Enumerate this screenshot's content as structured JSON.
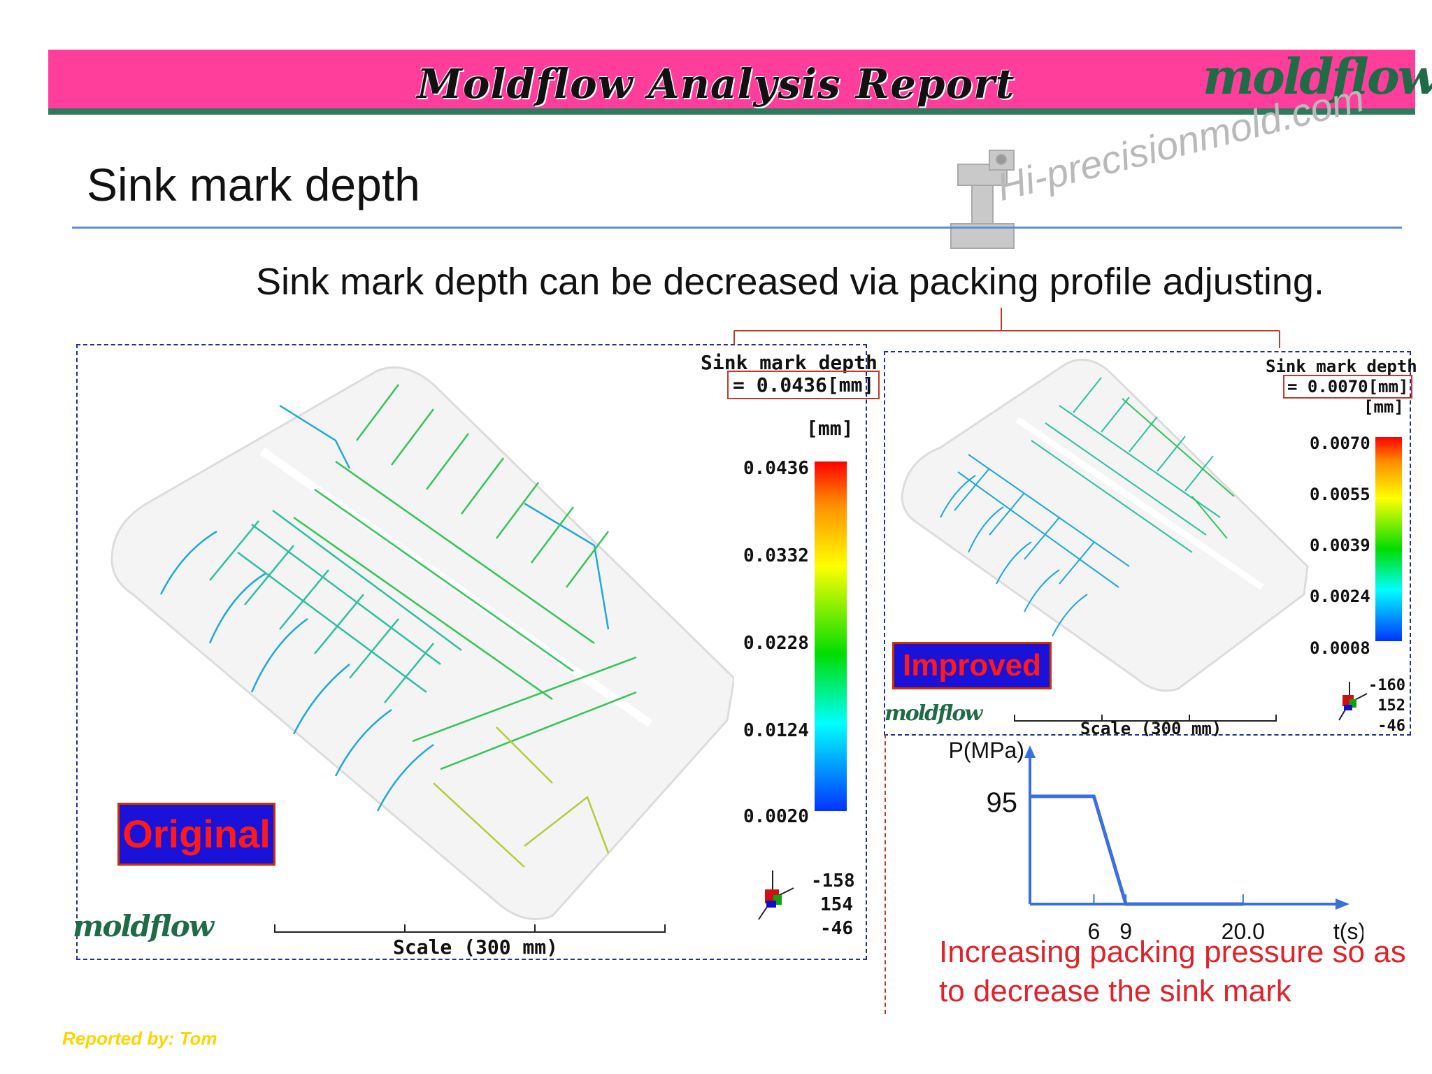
{
  "header": {
    "report_title": "Moldflow Analysis Report",
    "brand": "moldflow",
    "watermark": "Hi-precisionmold.com"
  },
  "page": {
    "title": "Sink mark depth",
    "subtitle": "Sink mark depth can be decreased via packing profile adjusting."
  },
  "colors": {
    "header": "#ff3d9b",
    "header_line": "#2e7a5c",
    "rule": "#5b8fd6",
    "note": "#e0222a",
    "footer": "#ffd400"
  },
  "original": {
    "label": "Original",
    "legend_title": "Sink mark depth",
    "legend_value": "= 0.0436[mm]",
    "unit": "[mm]",
    "scale_ticks": [
      "0.0436",
      "0.0332",
      "0.0228",
      "0.0124",
      "0.0020"
    ],
    "axis_values": [
      "-158",
      "154",
      "-46"
    ],
    "scale_label": "Scale (300 mm)",
    "logo": "moldflow"
  },
  "improved": {
    "label": "Improved",
    "legend_title": "Sink mark depth",
    "legend_value": "= 0.0070[mm]",
    "unit": "[mm]",
    "scale_ticks": [
      "0.0070",
      "0.0055",
      "0.0039",
      "0.0024",
      "0.0008"
    ],
    "axis_values": [
      "-160",
      "152",
      "-46"
    ],
    "scale_label": "Scale (300 mm)",
    "logo": "moldflow"
  },
  "chart_data": {
    "type": "line",
    "ylabel": "P(MPa)",
    "xlabel": "t(s)",
    "y_tick_labels": [
      "95"
    ],
    "x_tick_labels": [
      "6",
      "9",
      "20.0"
    ],
    "series": [
      {
        "x": [
          0,
          6,
          9,
          20
        ],
        "y": [
          95,
          95,
          0,
          0
        ]
      }
    ],
    "xlim": [
      0,
      29
    ],
    "ylim": [
      0,
      135
    ]
  },
  "note": "Increasing packing pressure so as to decrease the sink mark",
  "footer": "Reported by: Tom"
}
